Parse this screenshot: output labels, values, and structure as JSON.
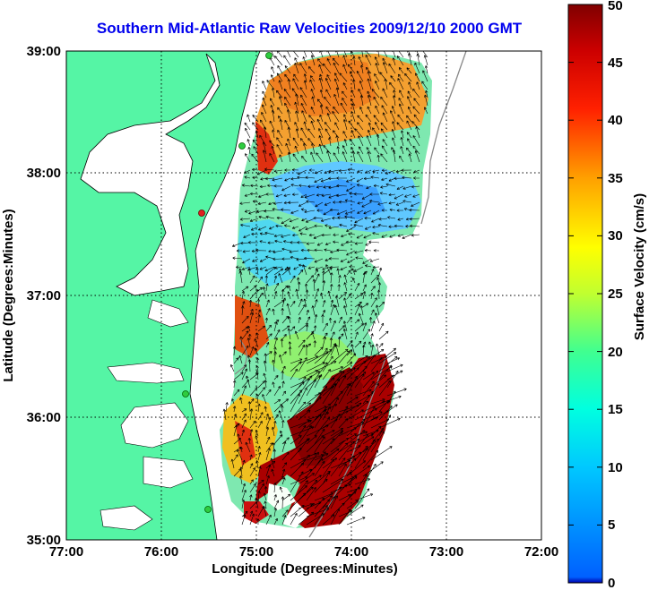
{
  "title": "Southern Mid-Atlantic Raw Velocities 2009/12/10 2000 GMT",
  "map": {
    "xlabel": "Longitude (Degrees:Minutes)",
    "ylabel": "Latitude (Degrees:Minutes)",
    "x_ticks": [
      "77:00",
      "76:00",
      "75:00",
      "74:00",
      "73:00",
      "72:00"
    ],
    "y_ticks": [
      "39:00",
      "38:00",
      "37:00",
      "36:00",
      "35:00"
    ],
    "lon_range": [
      -77,
      -72
    ],
    "lat_range": [
      35,
      39
    ],
    "land_color": "#55f5a5",
    "grid": "dotted"
  },
  "colorbar": {
    "label": "Surface Velocity (cm/s)",
    "range": [
      0,
      50
    ],
    "ticks": [
      "0",
      "5",
      "10",
      "15",
      "20",
      "25",
      "30",
      "35",
      "40",
      "45",
      "50"
    ],
    "colormap": "jet"
  }
}
